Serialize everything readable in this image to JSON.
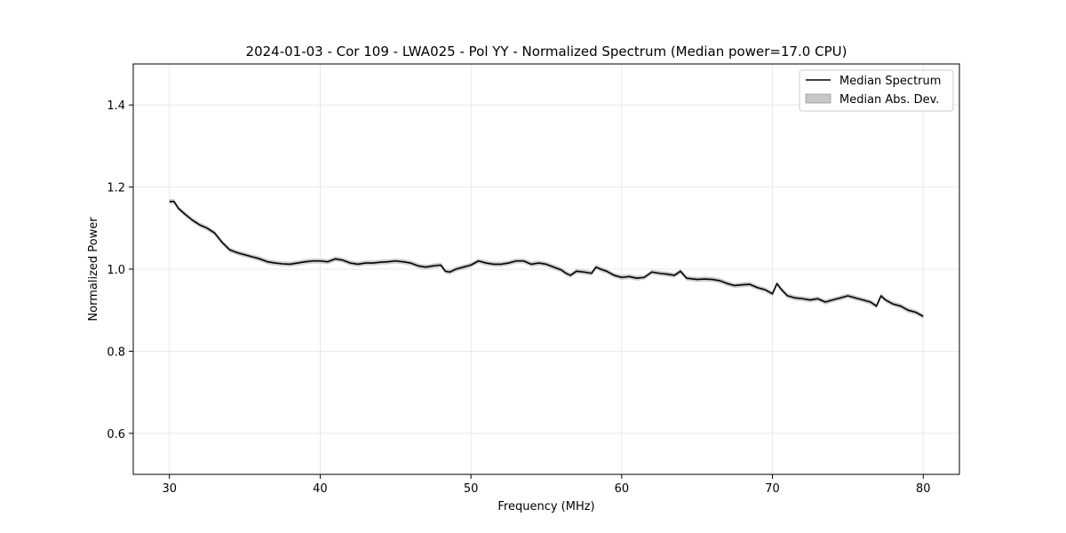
{
  "chart_data": {
    "type": "line",
    "title": "2024-01-03 - Cor 109 - LWA025 - Pol YY - Normalized Spectrum (Median power=17.0 CPU)",
    "xlabel": "Frequency (MHz)",
    "ylabel": "Normalized Power",
    "xlim": [
      27.6,
      82.4
    ],
    "ylim": [
      0.5,
      1.5
    ],
    "xticks": [
      30,
      40,
      50,
      60,
      70,
      80
    ],
    "yticks": [
      0.6,
      0.8,
      1.0,
      1.2,
      1.4
    ],
    "xtick_labels": [
      "30",
      "40",
      "50",
      "60",
      "70",
      "80"
    ],
    "ytick_labels": [
      "0.6",
      "0.8",
      "1.0",
      "1.2",
      "1.4"
    ],
    "grid": true,
    "legend_position": "top-right",
    "legend": [
      {
        "label": "Median Spectrum",
        "kind": "line",
        "color": "#000000"
      },
      {
        "label": "Median Abs. Dev.",
        "kind": "band",
        "color": "#b0b0b0"
      }
    ],
    "series": [
      {
        "name": "Median Spectrum",
        "color": "#000000",
        "mad": 0.006,
        "x": [
          30.0,
          30.3,
          30.6,
          31.0,
          31.5,
          32.0,
          32.5,
          33.0,
          33.5,
          34.0,
          34.5,
          35.0,
          35.5,
          36.0,
          36.5,
          37.0,
          37.5,
          38.0,
          38.5,
          39.0,
          39.5,
          40.0,
          40.5,
          41.0,
          41.5,
          42.0,
          42.5,
          43.0,
          43.5,
          44.0,
          44.5,
          45.0,
          45.5,
          46.0,
          46.5,
          47.0,
          47.5,
          48.0,
          48.3,
          48.6,
          49.0,
          49.5,
          50.0,
          50.5,
          51.0,
          51.5,
          52.0,
          52.5,
          53.0,
          53.5,
          54.0,
          54.5,
          55.0,
          55.5,
          56.0,
          56.3,
          56.6,
          57.0,
          57.5,
          58.0,
          58.3,
          58.6,
          59.0,
          59.5,
          60.0,
          60.5,
          61.0,
          61.5,
          62.0,
          62.5,
          63.0,
          63.5,
          63.9,
          64.3,
          65.0,
          65.5,
          66.0,
          66.5,
          67.0,
          67.5,
          68.0,
          68.5,
          69.0,
          69.5,
          70.0,
          70.3,
          70.6,
          71.0,
          71.5,
          72.0,
          72.5,
          73.0,
          73.5,
          74.0,
          74.5,
          75.0,
          75.5,
          76.0,
          76.5,
          76.9,
          77.2,
          77.5,
          78.0,
          78.5,
          79.0,
          79.5,
          80.0
        ],
        "values": [
          1.165,
          1.165,
          1.148,
          1.135,
          1.12,
          1.108,
          1.1,
          1.088,
          1.065,
          1.047,
          1.04,
          1.035,
          1.03,
          1.025,
          1.018,
          1.015,
          1.013,
          1.012,
          1.015,
          1.018,
          1.02,
          1.02,
          1.018,
          1.025,
          1.022,
          1.015,
          1.012,
          1.015,
          1.015,
          1.017,
          1.018,
          1.02,
          1.018,
          1.015,
          1.008,
          1.005,
          1.008,
          1.01,
          0.995,
          0.993,
          1.0,
          1.005,
          1.01,
          1.02,
          1.015,
          1.012,
          1.012,
          1.015,
          1.02,
          1.02,
          1.012,
          1.015,
          1.012,
          1.005,
          0.998,
          0.99,
          0.985,
          0.995,
          0.993,
          0.99,
          1.005,
          1.0,
          0.995,
          0.985,
          0.98,
          0.982,
          0.978,
          0.98,
          0.993,
          0.99,
          0.988,
          0.985,
          0.995,
          0.978,
          0.975,
          0.976,
          0.975,
          0.972,
          0.965,
          0.96,
          0.962,
          0.963,
          0.955,
          0.95,
          0.94,
          0.965,
          0.95,
          0.935,
          0.93,
          0.928,
          0.925,
          0.928,
          0.92,
          0.925,
          0.93,
          0.935,
          0.93,
          0.925,
          0.92,
          0.91,
          0.935,
          0.925,
          0.915,
          0.91,
          0.9,
          0.895,
          0.885
        ]
      }
    ]
  }
}
